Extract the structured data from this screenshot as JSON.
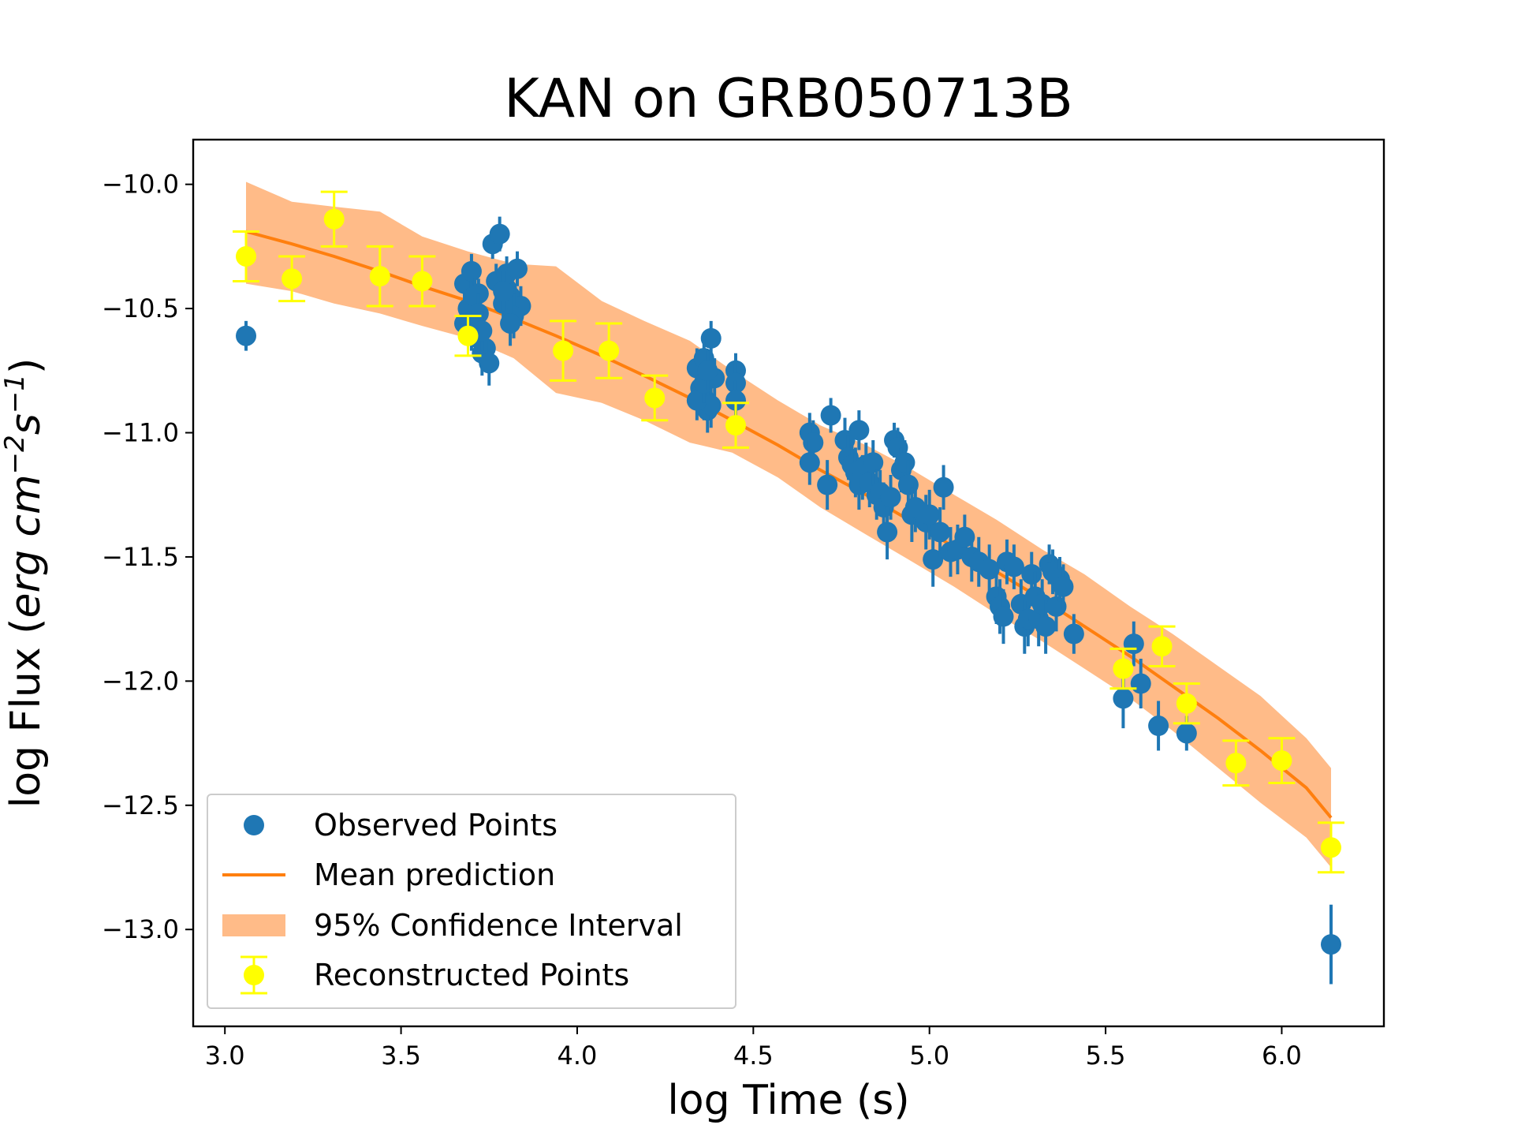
{
  "chart_data": {
    "type": "scatter",
    "title": "KAN on GRB050713B",
    "xlabel": "log Time (s)",
    "ylabel": "log Flux (erg cm⁻²s⁻¹)",
    "ylabel_parts": {
      "prefix": "log Flux (",
      "erg": "erg cm",
      "exp1": "−2",
      "s": "s",
      "exp2": "−1",
      "suffix": ")"
    },
    "xlim": [
      2.91,
      6.29
    ],
    "ylim": [
      -13.39,
      -9.82
    ],
    "xticks": [
      3.0,
      3.5,
      4.0,
      4.5,
      5.0,
      5.5,
      6.0
    ],
    "xtick_labels": [
      "3.0",
      "3.5",
      "4.0",
      "4.5",
      "5.0",
      "5.5",
      "6.0"
    ],
    "yticks": [
      -10.0,
      -10.5,
      -11.0,
      -11.5,
      -12.0,
      -12.5,
      -13.0
    ],
    "ytick_labels": [
      "−10.0",
      "−10.5",
      "−11.0",
      "−11.5",
      "−12.0",
      "−12.5",
      "−13.0"
    ],
    "legend_position": "lower-left",
    "legend": [
      {
        "key": "observed",
        "label": "Observed Points"
      },
      {
        "key": "mean",
        "label": "Mean prediction"
      },
      {
        "key": "ci",
        "label": "95% Confidence Interval"
      },
      {
        "key": "reconstructed",
        "label": "Reconstructed Points"
      }
    ],
    "colors": {
      "observed": "#1f77b4",
      "mean": "#ff7f0e",
      "ci": "#ffbb88",
      "reconstructed": "#ffff00"
    },
    "series": [
      {
        "name": "Mean prediction",
        "kind": "line",
        "x": [
          3.06,
          3.19,
          3.31,
          3.44,
          3.56,
          3.69,
          3.82,
          3.94,
          4.07,
          4.19,
          4.32,
          4.44,
          4.57,
          4.69,
          4.82,
          4.94,
          5.07,
          5.19,
          5.32,
          5.44,
          5.57,
          5.69,
          5.82,
          5.94,
          6.07,
          6.14
        ],
        "y": [
          -10.19,
          -10.24,
          -10.29,
          -10.35,
          -10.41,
          -10.47,
          -10.54,
          -10.61,
          -10.69,
          -10.77,
          -10.86,
          -10.95,
          -11.05,
          -11.15,
          -11.25,
          -11.35,
          -11.46,
          -11.56,
          -11.67,
          -11.78,
          -11.9,
          -12.02,
          -12.15,
          -12.28,
          -12.43,
          -12.55
        ]
      },
      {
        "name": "95% Confidence Interval",
        "kind": "band",
        "x": [
          3.06,
          3.19,
          3.31,
          3.44,
          3.56,
          3.69,
          3.82,
          3.94,
          4.07,
          4.19,
          4.32,
          4.44,
          4.57,
          4.69,
          4.82,
          4.94,
          5.07,
          5.19,
          5.32,
          5.44,
          5.57,
          5.69,
          5.82,
          5.94,
          6.07,
          6.14
        ],
        "upper": [
          -9.99,
          -10.07,
          -10.09,
          -10.11,
          -10.21,
          -10.27,
          -10.32,
          -10.33,
          -10.47,
          -10.55,
          -10.63,
          -10.75,
          -10.87,
          -10.97,
          -11.05,
          -11.14,
          -11.25,
          -11.35,
          -11.47,
          -11.57,
          -11.7,
          -11.81,
          -11.94,
          -12.06,
          -12.23,
          -12.35
        ],
        "lower": [
          -10.4,
          -10.43,
          -10.48,
          -10.52,
          -10.57,
          -10.62,
          -10.7,
          -10.84,
          -10.88,
          -10.95,
          -11.04,
          -11.08,
          -11.18,
          -11.3,
          -11.41,
          -11.51,
          -11.62,
          -11.73,
          -11.84,
          -11.95,
          -12.07,
          -12.2,
          -12.35,
          -12.49,
          -12.63,
          -12.75
        ]
      },
      {
        "name": "Observed Points",
        "kind": "points",
        "x": [
          3.06,
          3.68,
          3.7,
          3.72,
          3.69,
          3.71,
          3.73,
          3.68,
          3.7,
          3.72,
          3.74,
          3.75,
          3.71,
          3.72,
          3.73,
          3.76,
          3.78,
          3.77,
          3.8,
          3.81,
          3.82,
          3.79,
          3.8,
          3.83,
          3.84,
          3.82,
          3.81,
          3.79,
          4.34,
          4.35,
          4.36,
          4.37,
          4.38,
          4.36,
          4.35,
          4.37,
          4.38,
          4.39,
          4.34,
          4.36,
          4.37,
          4.45,
          4.45,
          4.45,
          4.66,
          4.67,
          4.66,
          4.71,
          4.72,
          4.76,
          4.77,
          4.78,
          4.79,
          4.8,
          4.8,
          4.81,
          4.82,
          4.83,
          4.84,
          4.85,
          4.86,
          4.87,
          4.88,
          4.89,
          4.9,
          4.91,
          4.92,
          4.93,
          4.94,
          4.95,
          4.96,
          4.99,
          5.0,
          5.01,
          5.03,
          5.04,
          5.06,
          5.08,
          5.1,
          5.12,
          5.14,
          5.17,
          5.19,
          5.2,
          5.21,
          5.22,
          5.24,
          5.26,
          5.27,
          5.28,
          5.29,
          5.3,
          5.31,
          5.32,
          5.33,
          5.34,
          5.35,
          5.36,
          5.37,
          5.38,
          5.41,
          5.55,
          5.58,
          5.6,
          5.65,
          5.73,
          6.14
        ],
        "y": [
          -10.61,
          -10.4,
          -10.35,
          -10.44,
          -10.5,
          -10.57,
          -10.68,
          -10.56,
          -10.6,
          -10.62,
          -10.66,
          -10.72,
          -10.45,
          -10.52,
          -10.59,
          -10.24,
          -10.2,
          -10.39,
          -10.42,
          -10.45,
          -10.51,
          -10.48,
          -10.36,
          -10.34,
          -10.49,
          -10.53,
          -10.56,
          -10.43,
          -10.74,
          -10.82,
          -10.86,
          -10.77,
          -10.62,
          -10.7,
          -10.85,
          -10.91,
          -10.89,
          -10.78,
          -10.87,
          -10.8,
          -10.75,
          -10.75,
          -10.8,
          -10.87,
          -11.0,
          -11.04,
          -11.12,
          -11.21,
          -10.93,
          -11.03,
          -11.1,
          -11.13,
          -11.16,
          -10.99,
          -11.21,
          -11.18,
          -11.13,
          -11.2,
          -11.12,
          -11.25,
          -11.24,
          -11.3,
          -11.4,
          -11.26,
          -11.03,
          -11.06,
          -11.15,
          -11.12,
          -11.21,
          -11.33,
          -11.3,
          -11.36,
          -11.33,
          -11.51,
          -11.4,
          -11.22,
          -11.48,
          -11.47,
          -11.42,
          -11.5,
          -11.52,
          -11.55,
          -11.66,
          -11.7,
          -11.74,
          -11.52,
          -11.54,
          -11.69,
          -11.78,
          -11.75,
          -11.57,
          -11.66,
          -11.75,
          -11.69,
          -11.78,
          -11.53,
          -11.56,
          -11.7,
          -11.59,
          -11.62,
          -11.81,
          -12.07,
          -11.85,
          -12.01,
          -12.18,
          -12.21,
          -13.06
        ],
        "yerr": [
          0.06,
          0.07,
          0.07,
          0.06,
          0.08,
          0.07,
          0.09,
          0.06,
          0.07,
          0.08,
          0.08,
          0.09,
          0.07,
          0.08,
          0.08,
          0.06,
          0.07,
          0.07,
          0.08,
          0.09,
          0.09,
          0.08,
          0.07,
          0.07,
          0.08,
          0.09,
          0.09,
          0.08,
          0.08,
          0.08,
          0.09,
          0.08,
          0.07,
          0.08,
          0.08,
          0.09,
          0.09,
          0.08,
          0.08,
          0.08,
          0.08,
          0.07,
          0.08,
          0.08,
          0.08,
          0.09,
          0.09,
          0.1,
          0.07,
          0.09,
          0.09,
          0.09,
          0.1,
          0.08,
          0.1,
          0.09,
          0.09,
          0.1,
          0.09,
          0.1,
          0.09,
          0.1,
          0.11,
          0.09,
          0.07,
          0.08,
          0.09,
          0.09,
          0.1,
          0.11,
          0.1,
          0.11,
          0.1,
          0.11,
          0.1,
          0.09,
          0.1,
          0.1,
          0.09,
          0.1,
          0.1,
          0.1,
          0.11,
          0.11,
          0.11,
          0.09,
          0.09,
          0.1,
          0.11,
          0.11,
          0.09,
          0.1,
          0.11,
          0.1,
          0.11,
          0.08,
          0.09,
          0.1,
          0.09,
          0.09,
          0.08,
          0.12,
          0.09,
          0.1,
          0.1,
          0.07,
          0.16
        ]
      },
      {
        "name": "Reconstructed Points",
        "kind": "points",
        "x": [
          3.06,
          3.19,
          3.31,
          3.44,
          3.56,
          3.69,
          3.96,
          4.09,
          4.22,
          4.45,
          5.55,
          5.66,
          5.73,
          5.87,
          6.0,
          6.14
        ],
        "y": [
          -10.29,
          -10.38,
          -10.14,
          -10.37,
          -10.39,
          -10.61,
          -10.67,
          -10.67,
          -10.86,
          -10.97,
          -11.95,
          -11.86,
          -12.09,
          -12.33,
          -12.32,
          -12.67
        ],
        "yerr": [
          0.1,
          0.09,
          0.11,
          0.12,
          0.1,
          0.08,
          0.12,
          0.11,
          0.09,
          0.09,
          0.08,
          0.08,
          0.08,
          0.09,
          0.09,
          0.1
        ]
      }
    ]
  }
}
